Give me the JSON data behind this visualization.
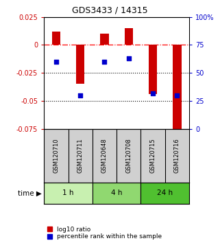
{
  "title": "GDS3433 / 14315",
  "samples": [
    "GSM120710",
    "GSM120711",
    "GSM120648",
    "GSM120708",
    "GSM120715",
    "GSM120716"
  ],
  "log10_ratio": [
    0.012,
    -0.035,
    0.01,
    0.015,
    -0.044,
    -0.08
  ],
  "percentile_rank": [
    60,
    30,
    60,
    63,
    32,
    30
  ],
  "ylim_left": [
    -0.075,
    0.025
  ],
  "ylim_right": [
    0,
    100
  ],
  "yticks_left": [
    0.025,
    0,
    -0.025,
    -0.05,
    -0.075
  ],
  "yticks_right": [
    100,
    75,
    50,
    25,
    0
  ],
  "ytick_labels_left": [
    "0.025",
    "0",
    "-0.025",
    "-0.05",
    "-0.075"
  ],
  "ytick_labels_right": [
    "100%",
    "75",
    "50",
    "25",
    "0"
  ],
  "hlines_dotted": [
    -0.025,
    -0.05
  ],
  "hline_dashed": 0,
  "time_groups": [
    {
      "label": "1 h",
      "start": 0,
      "end": 2,
      "color": "#c8f0b0"
    },
    {
      "label": "4 h",
      "start": 2,
      "end": 4,
      "color": "#90d870"
    },
    {
      "label": "24 h",
      "start": 4,
      "end": 6,
      "color": "#50c030"
    }
  ],
  "bar_color": "#cc0000",
  "dot_color": "#0000cc",
  "bar_width": 0.35,
  "background_color": "#ffffff",
  "plot_bg_color": "#ffffff",
  "legend_red_label": "log10 ratio",
  "legend_blue_label": "percentile rank within the sample",
  "time_label": "time",
  "title_color": "#000000",
  "left_axis_color": "#cc0000",
  "right_axis_color": "#0000cc",
  "sample_box_color": "#d0d0d0",
  "figsize": [
    3.21,
    3.54
  ],
  "dpi": 100
}
